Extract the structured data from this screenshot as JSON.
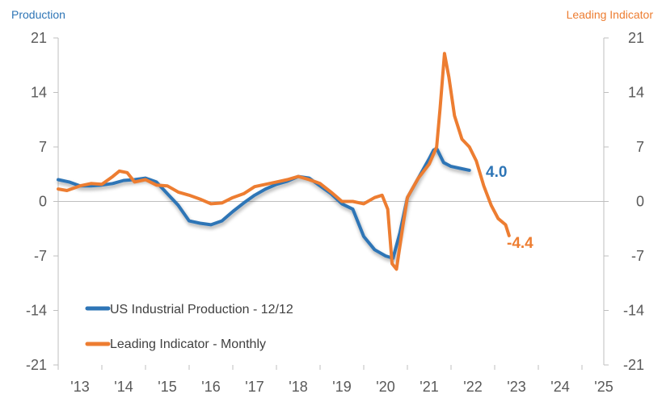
{
  "colors": {
    "production": "#2E75B6",
    "production_label": "#2E75B6",
    "leading": "#ED7D31",
    "axis": "#BFBFBF",
    "tick": "#595959"
  },
  "chart_data": {
    "type": "line",
    "left_axis_title": "Production",
    "right_axis_title": "Leading Indicator",
    "ylim": [
      -21,
      21
    ],
    "yticks": [
      21,
      14,
      7,
      0,
      -7,
      -14,
      -21
    ],
    "xlim": [
      2013.0,
      2025.5
    ],
    "xticks": [
      2013,
      2014,
      2015,
      2016,
      2017,
      2018,
      2019,
      2020,
      2021,
      2022,
      2023,
      2024,
      2025
    ],
    "xtick_labels": [
      "'13",
      "'14",
      "'15",
      "'16",
      "'17",
      "'18",
      "'19",
      "'20",
      "'21",
      "'22",
      "'23",
      "'24",
      "'25"
    ],
    "series": [
      {
        "name": "US Industrial Production - 12/12",
        "color": "#2E75B6",
        "end_label": "4.0",
        "points": [
          [
            2013.0,
            2.8
          ],
          [
            2013.25,
            2.5
          ],
          [
            2013.5,
            2.0
          ],
          [
            2013.75,
            2.0
          ],
          [
            2014.0,
            2.1
          ],
          [
            2014.25,
            2.3
          ],
          [
            2014.5,
            2.7
          ],
          [
            2014.75,
            2.8
          ],
          [
            2015.0,
            3.0
          ],
          [
            2015.25,
            2.5
          ],
          [
            2015.5,
            1.0
          ],
          [
            2015.75,
            -0.5
          ],
          [
            2016.0,
            -2.5
          ],
          [
            2016.25,
            -2.8
          ],
          [
            2016.5,
            -3.0
          ],
          [
            2016.75,
            -2.5
          ],
          [
            2017.0,
            -1.3
          ],
          [
            2017.25,
            -0.2
          ],
          [
            2017.5,
            0.8
          ],
          [
            2017.75,
            1.6
          ],
          [
            2018.0,
            2.2
          ],
          [
            2018.25,
            2.6
          ],
          [
            2018.5,
            3.2
          ],
          [
            2018.75,
            3.0
          ],
          [
            2019.0,
            2.0
          ],
          [
            2019.25,
            1.0
          ],
          [
            2019.5,
            -0.3
          ],
          [
            2019.75,
            -1.0
          ],
          [
            2020.0,
            -4.5
          ],
          [
            2020.25,
            -6.2
          ],
          [
            2020.5,
            -7.0
          ],
          [
            2020.67,
            -7.3
          ],
          [
            2020.83,
            -4.0
          ],
          [
            2021.0,
            0.5
          ],
          [
            2021.25,
            3.0
          ],
          [
            2021.5,
            5.5
          ],
          [
            2021.6,
            6.6
          ],
          [
            2021.67,
            6.8
          ],
          [
            2021.83,
            5.0
          ],
          [
            2022.0,
            4.5
          ],
          [
            2022.25,
            4.2
          ],
          [
            2022.42,
            4.0
          ]
        ]
      },
      {
        "name": "Leading Indicator - Monthly",
        "color": "#ED7D31",
        "end_label": "-4.4",
        "points": [
          [
            2013.0,
            1.6
          ],
          [
            2013.2,
            1.4
          ],
          [
            2013.5,
            2.0
          ],
          [
            2013.75,
            2.3
          ],
          [
            2014.0,
            2.2
          ],
          [
            2014.25,
            3.2
          ],
          [
            2014.4,
            3.9
          ],
          [
            2014.58,
            3.7
          ],
          [
            2014.75,
            2.5
          ],
          [
            2015.0,
            2.8
          ],
          [
            2015.25,
            2.1
          ],
          [
            2015.5,
            2.0
          ],
          [
            2015.75,
            1.2
          ],
          [
            2016.0,
            0.8
          ],
          [
            2016.25,
            0.3
          ],
          [
            2016.5,
            -0.3
          ],
          [
            2016.75,
            -0.2
          ],
          [
            2017.0,
            0.5
          ],
          [
            2017.25,
            1.0
          ],
          [
            2017.5,
            1.9
          ],
          [
            2017.75,
            2.2
          ],
          [
            2018.0,
            2.5
          ],
          [
            2018.25,
            2.8
          ],
          [
            2018.5,
            3.2
          ],
          [
            2018.75,
            2.8
          ],
          [
            2019.0,
            2.3
          ],
          [
            2019.25,
            1.2
          ],
          [
            2019.5,
            0.0
          ],
          [
            2019.75,
            0.0
          ],
          [
            2020.0,
            -0.3
          ],
          [
            2020.25,
            0.5
          ],
          [
            2020.42,
            0.8
          ],
          [
            2020.55,
            -1.0
          ],
          [
            2020.65,
            -8.0
          ],
          [
            2020.75,
            -8.7
          ],
          [
            2020.9,
            -3.0
          ],
          [
            2021.0,
            0.5
          ],
          [
            2021.25,
            3.0
          ],
          [
            2021.5,
            4.8
          ],
          [
            2021.67,
            7.0
          ],
          [
            2021.75,
            12.0
          ],
          [
            2021.85,
            19.0
          ],
          [
            2021.95,
            16.0
          ],
          [
            2022.08,
            11.0
          ],
          [
            2022.25,
            8.0
          ],
          [
            2022.42,
            7.0
          ],
          [
            2022.58,
            5.2
          ],
          [
            2022.75,
            2.0
          ],
          [
            2022.92,
            -0.5
          ],
          [
            2023.08,
            -2.2
          ],
          [
            2023.25,
            -3.0
          ],
          [
            2023.33,
            -4.4
          ]
        ]
      }
    ]
  }
}
